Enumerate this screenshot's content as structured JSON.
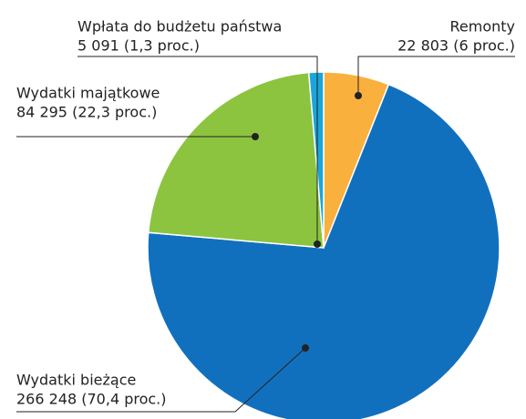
{
  "chart_data": {
    "type": "pie",
    "categories": [
      "Remonty",
      "Wydatki bieżące",
      "Wydatki majątkowe",
      "Wpłata do budżetu państwa"
    ],
    "values": [
      22803,
      266248,
      84295,
      5091
    ],
    "value_labels": [
      "22 803 (6 proc.)",
      "266 248 (70,4 proc.)",
      "84 295 (22,3 proc.)",
      "5 091 (1,3 proc.)"
    ],
    "colors": [
      "#f9b03d",
      "#1170be",
      "#8cc43f",
      "#1ba6d9"
    ]
  }
}
